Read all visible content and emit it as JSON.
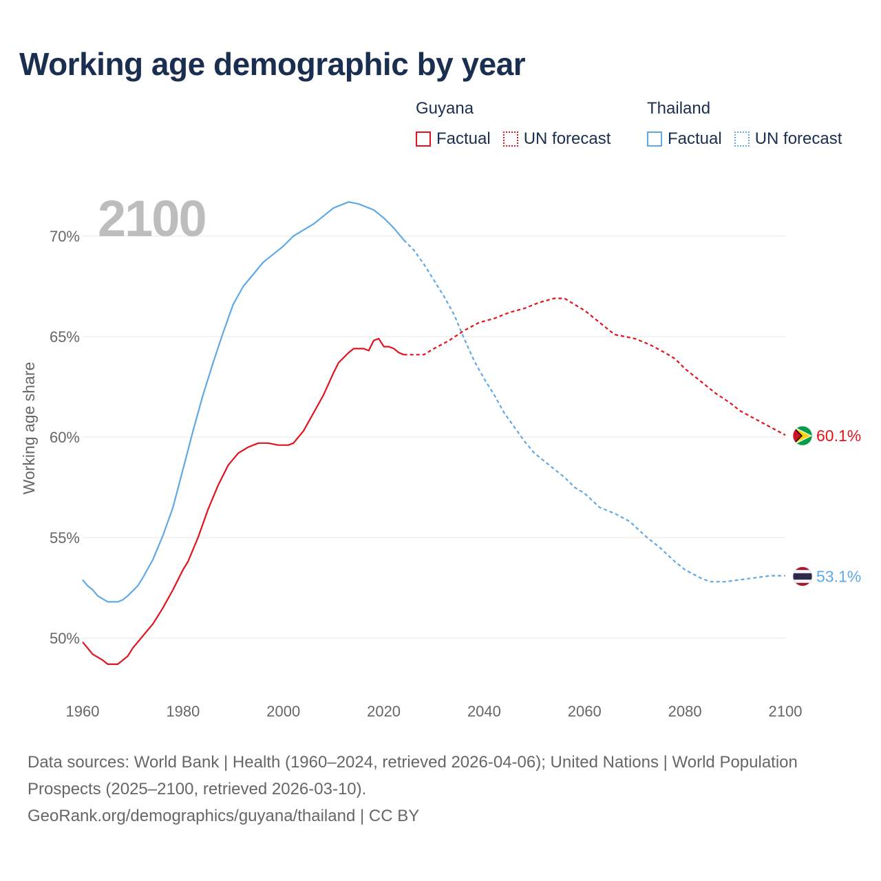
{
  "title": "Working age demographic by year",
  "year_label": "2100",
  "legend": {
    "groups": [
      {
        "name": "Guyana",
        "factual_label": "Factual",
        "forecast_label": "UN forecast",
        "color": "#e3111b"
      },
      {
        "name": "Thailand",
        "factual_label": "Factual",
        "forecast_label": "UN forecast",
        "color": "#5fa8e6"
      }
    ]
  },
  "footer": {
    "line1": "Data sources: World Bank | Health (1960–2024, retrieved 2026-04-06); United Nations | World Population Prospects (2025–2100, retrieved 2026-03-10).",
    "line2": "GeoRank.org/demographics/guyana/thailand | CC BY"
  },
  "chart_data": {
    "type": "line",
    "title": "Working age demographic by year",
    "xlabel": "",
    "ylabel": "Working age share",
    "xlim": [
      1960,
      2100
    ],
    "ylim": [
      47.5,
      72.5
    ],
    "x_ticks": [
      "1960",
      "1980",
      "2000",
      "2020",
      "2040",
      "2060",
      "2080",
      "2100"
    ],
    "x_tick_values": [
      1960,
      1980,
      2000,
      2020,
      2040,
      2060,
      2080,
      2100
    ],
    "y_ticks": [
      "50%",
      "55%",
      "60%",
      "65%",
      "70%"
    ],
    "y_tick_values": [
      50,
      55,
      60,
      65,
      70
    ],
    "factual_end_year": 2024,
    "series": [
      {
        "name": "Guyana",
        "color": "#e3111b",
        "end_label": "60.1%",
        "flag": "guyana",
        "points": [
          [
            1960,
            49.8
          ],
          [
            1962,
            49.2
          ],
          [
            1964,
            48.9
          ],
          [
            1965,
            48.7
          ],
          [
            1967,
            48.7
          ],
          [
            1969,
            49.1
          ],
          [
            1970,
            49.5
          ],
          [
            1972,
            50.1
          ],
          [
            1974,
            50.7
          ],
          [
            1976,
            51.5
          ],
          [
            1978,
            52.4
          ],
          [
            1980,
            53.4
          ],
          [
            1981,
            53.8
          ],
          [
            1983,
            55.0
          ],
          [
            1985,
            56.4
          ],
          [
            1987,
            57.6
          ],
          [
            1989,
            58.6
          ],
          [
            1991,
            59.2
          ],
          [
            1993,
            59.5
          ],
          [
            1995,
            59.7
          ],
          [
            1997,
            59.7
          ],
          [
            1999,
            59.6
          ],
          [
            2001,
            59.6
          ],
          [
            2002,
            59.7
          ],
          [
            2004,
            60.3
          ],
          [
            2006,
            61.2
          ],
          [
            2008,
            62.1
          ],
          [
            2010,
            63.2
          ],
          [
            2011,
            63.7
          ],
          [
            2013,
            64.2
          ],
          [
            2014,
            64.4
          ],
          [
            2016,
            64.4
          ],
          [
            2017,
            64.3
          ],
          [
            2018,
            64.8
          ],
          [
            2019,
            64.9
          ],
          [
            2020,
            64.5
          ],
          [
            2021,
            64.5
          ],
          [
            2022,
            64.4
          ],
          [
            2023,
            64.2
          ],
          [
            2024,
            64.1
          ],
          [
            2028,
            64.1
          ],
          [
            2030,
            64.4
          ],
          [
            2033,
            64.8
          ],
          [
            2036,
            65.3
          ],
          [
            2039,
            65.7
          ],
          [
            2042,
            65.9
          ],
          [
            2045,
            66.2
          ],
          [
            2048,
            66.4
          ],
          [
            2051,
            66.7
          ],
          [
            2054,
            66.9
          ],
          [
            2056,
            66.9
          ],
          [
            2058,
            66.6
          ],
          [
            2060,
            66.3
          ],
          [
            2063,
            65.7
          ],
          [
            2066,
            65.1
          ],
          [
            2068,
            65.0
          ],
          [
            2070,
            64.9
          ],
          [
            2073,
            64.6
          ],
          [
            2076,
            64.2
          ],
          [
            2078,
            63.9
          ],
          [
            2080,
            63.4
          ],
          [
            2083,
            62.8
          ],
          [
            2086,
            62.2
          ],
          [
            2089,
            61.7
          ],
          [
            2091,
            61.3
          ],
          [
            2094,
            60.9
          ],
          [
            2097,
            60.5
          ],
          [
            2100,
            60.1
          ]
        ]
      },
      {
        "name": "Thailand",
        "color": "#5fa8e6",
        "end_label": "53.1%",
        "flag": "thailand",
        "points": [
          [
            1960,
            52.9
          ],
          [
            1961,
            52.6
          ],
          [
            1962,
            52.4
          ],
          [
            1963,
            52.1
          ],
          [
            1965,
            51.8
          ],
          [
            1967,
            51.8
          ],
          [
            1968,
            51.9
          ],
          [
            1969,
            52.1
          ],
          [
            1971,
            52.6
          ],
          [
            1972,
            53.0
          ],
          [
            1974,
            53.9
          ],
          [
            1976,
            55.1
          ],
          [
            1978,
            56.5
          ],
          [
            1980,
            58.4
          ],
          [
            1982,
            60.3
          ],
          [
            1984,
            62.1
          ],
          [
            1986,
            63.7
          ],
          [
            1988,
            65.2
          ],
          [
            1990,
            66.6
          ],
          [
            1992,
            67.5
          ],
          [
            1994,
            68.1
          ],
          [
            1996,
            68.7
          ],
          [
            1998,
            69.1
          ],
          [
            2000,
            69.5
          ],
          [
            2002,
            70.0
          ],
          [
            2004,
            70.3
          ],
          [
            2006,
            70.6
          ],
          [
            2008,
            71.0
          ],
          [
            2010,
            71.4
          ],
          [
            2012,
            71.6
          ],
          [
            2013,
            71.7
          ],
          [
            2015,
            71.6
          ],
          [
            2018,
            71.3
          ],
          [
            2020,
            70.9
          ],
          [
            2022,
            70.4
          ],
          [
            2024,
            69.8
          ],
          [
            2026,
            69.3
          ],
          [
            2028,
            68.6
          ],
          [
            2030,
            67.8
          ],
          [
            2032,
            67.0
          ],
          [
            2034,
            66.1
          ],
          [
            2036,
            64.9
          ],
          [
            2038,
            63.8
          ],
          [
            2040,
            62.9
          ],
          [
            2042,
            62.1
          ],
          [
            2044,
            61.2
          ],
          [
            2046,
            60.5
          ],
          [
            2048,
            59.8
          ],
          [
            2050,
            59.2
          ],
          [
            2053,
            58.6
          ],
          [
            2056,
            58.0
          ],
          [
            2058,
            57.5
          ],
          [
            2060,
            57.2
          ],
          [
            2063,
            56.5
          ],
          [
            2066,
            56.2
          ],
          [
            2069,
            55.8
          ],
          [
            2072,
            55.1
          ],
          [
            2075,
            54.5
          ],
          [
            2078,
            53.8
          ],
          [
            2080,
            53.4
          ],
          [
            2083,
            53.0
          ],
          [
            2085,
            52.8
          ],
          [
            2088,
            52.8
          ],
          [
            2091,
            52.9
          ],
          [
            2094,
            53.0
          ],
          [
            2097,
            53.1
          ],
          [
            2100,
            53.1
          ]
        ]
      }
    ]
  }
}
